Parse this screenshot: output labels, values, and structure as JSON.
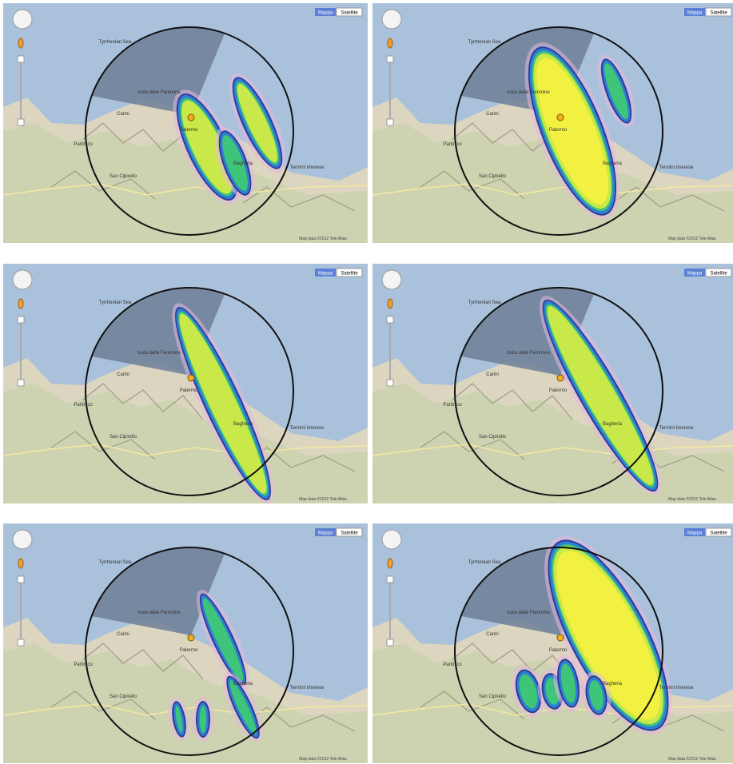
{
  "panels": [
    {
      "map_button": "Mappa",
      "satellite_button": "Satellite",
      "labels": [
        "Tyrrhenian Sea",
        "Isola delle Femmine",
        "Carini",
        "Palermo",
        "Partinico",
        "San Cipirello",
        "Bagheria",
        "Termini Imerese"
      ],
      "attribution": "Map data ©2012 Tele Atlas"
    },
    {
      "map_button": "Mappa",
      "satellite_button": "Satellite",
      "labels": [
        "Tyrrhenian Sea",
        "Isola delle Femmine",
        "Carini",
        "Palermo",
        "Partinico",
        "San Cipirello",
        "Bagheria",
        "Termini Imerese"
      ],
      "attribution": "Map data ©2012 Tele Atlas"
    },
    {
      "map_button": "Mappa",
      "satellite_button": "Satellite",
      "labels": [
        "Tyrrhenian Sea",
        "Isola delle Femmine",
        "Carini",
        "Palermo",
        "Partinico",
        "San Cipirello",
        "Bagheria",
        "Termini Imerese"
      ],
      "attribution": "Map data ©2012 Tele Atlas"
    },
    {
      "map_button": "Mappa",
      "satellite_button": "Satellite",
      "labels": [
        "Tyrrhenian Sea",
        "Isola delle Femmine",
        "Carini",
        "Palermo",
        "Partinico",
        "San Cipirello",
        "Bagheria",
        "Termini Imerese"
      ],
      "attribution": "Map data ©2012 Tele Atlas"
    },
    {
      "map_button": "Mappa",
      "satellite_button": "Satellite",
      "labels": [
        "Tyrrhenian Sea",
        "Isola delle Femmine",
        "Carini",
        "Palermo",
        "Partinico",
        "San Cipirello",
        "Bagheria",
        "Termini Imerese"
      ],
      "attribution": "Map data ©2012 Tele Atlas"
    },
    {
      "map_button": "Mappa",
      "satellite_button": "Satellite",
      "labels": [
        "Tyrrhenian Sea",
        "Isola delle Femmine",
        "Carini",
        "Palermo",
        "Partinico",
        "San Cipirello",
        "Bagheria",
        "Termini Imerese"
      ],
      "attribution": "Map data ©2012 Tele Atlas"
    }
  ]
}
